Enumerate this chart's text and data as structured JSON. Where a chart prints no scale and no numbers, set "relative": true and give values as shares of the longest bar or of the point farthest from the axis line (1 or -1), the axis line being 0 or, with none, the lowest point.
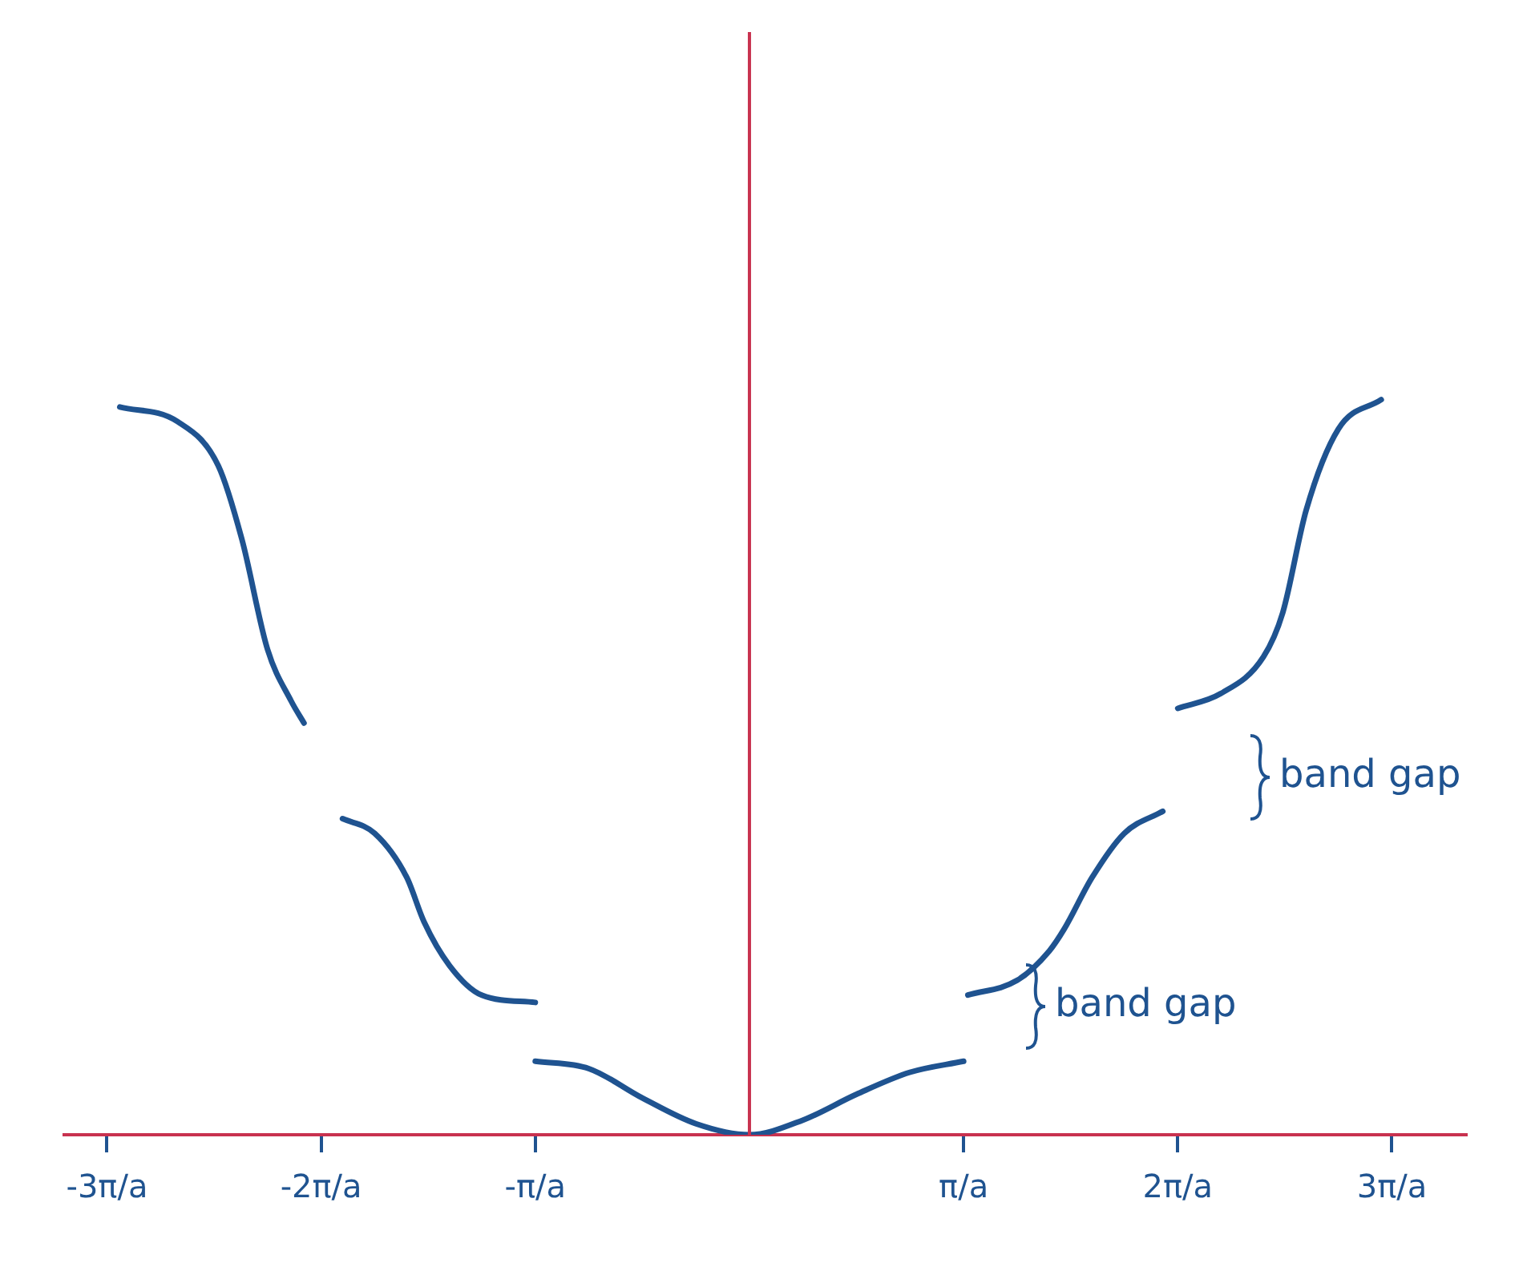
{
  "chart_data": {
    "type": "line",
    "relative": true,
    "legend": false,
    "grid": false,
    "marker": "none",
    "line_style": "solid",
    "xlim": [
      -3.2,
      3.35
    ],
    "xticks": [
      {
        "value": -3,
        "label": "-3π/a"
      },
      {
        "value": -2,
        "label": "-2π/a"
      },
      {
        "value": -1,
        "label": "-π/a"
      },
      {
        "value": 1,
        "label": "π/a"
      },
      {
        "value": 2,
        "label": "2π/a"
      },
      {
        "value": 3,
        "label": "3π/a"
      }
    ],
    "series": [
      {
        "color": "#1f5390",
        "x": [
          -2.94,
          -2.67,
          -2.48,
          -2.37,
          -2.25,
          -2.14,
          -2.08
        ],
        "values": [
          0.99,
          0.97,
          0.91,
          0.81,
          0.66,
          0.59,
          0.56
        ]
      },
      {
        "color": "#1f5390",
        "x": [
          -1.9,
          -1.75,
          -1.6,
          -1.52,
          -1.4,
          -1.25,
          -1.0
        ],
        "values": [
          0.43,
          0.41,
          0.35,
          0.29,
          0.23,
          0.19,
          0.18
        ]
      },
      {
        "color": "#1f5390",
        "x": [
          -1.0,
          -0.75,
          -0.5,
          -0.25,
          0,
          0.25,
          0.5,
          0.75,
          1.0
        ],
        "values": [
          0.1,
          0.09,
          0.05,
          0.015,
          0,
          0.02,
          0.055,
          0.085,
          0.1
        ]
      },
      {
        "color": "#1f5390",
        "x": [
          1.02,
          1.25,
          1.4,
          1.47,
          1.6,
          1.75,
          1.93
        ],
        "values": [
          0.19,
          0.21,
          0.25,
          0.28,
          0.35,
          0.41,
          0.44
        ]
      },
      {
        "color": "#1f5390",
        "x": [
          2.0,
          2.2,
          2.4,
          2.49,
          2.6,
          2.75,
          2.95
        ],
        "values": [
          0.58,
          0.6,
          0.65,
          0.71,
          0.85,
          0.96,
          1
        ]
      }
    ],
    "ref_lines": [
      {
        "axis": "x",
        "value": 0,
        "color": "#c8324f"
      }
    ],
    "annotations": [
      "band gap",
      "band gap"
    ]
  }
}
